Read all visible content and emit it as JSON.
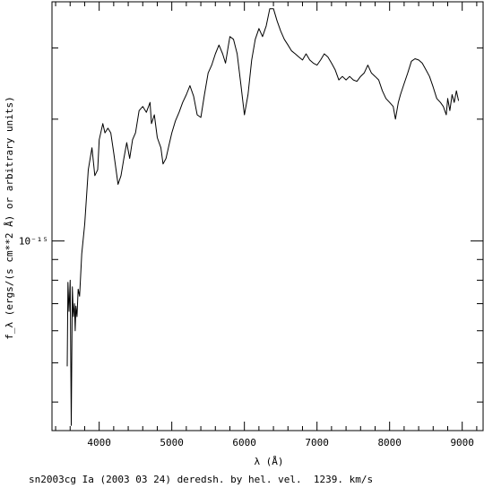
{
  "chart_data": {
    "type": "line",
    "title": "",
    "xlabel": "λ (Å)",
    "ylabel": "f_λ (ergs/(s cm**2 Å) or arbitrary units)",
    "y_scale": "log",
    "xlim": [
      3350,
      9300
    ],
    "ylim": [
      3.4e-16,
      3.9e-15
    ],
    "x_ticks": [
      4000,
      5000,
      6000,
      7000,
      8000,
      9000
    ],
    "x_tick_labels": [
      "4000",
      "5000",
      "6000",
      "7000",
      "8000",
      "9000"
    ],
    "y_major_tick": 1e-15,
    "y_major_tick_label": "10⁻¹⁵",
    "grid": false,
    "caption": "sn2003cg Ia (2003 03 24) deredsh. by hel. vel.  1239. km/s",
    "series": [
      {
        "points": [
          [
            3560,
            4.9e-16
          ],
          [
            3570,
            7.9e-16
          ],
          [
            3585,
            6.7e-16
          ],
          [
            3600,
            8e-16
          ],
          [
            3615,
            3.5e-16
          ],
          [
            3630,
            7.7e-16
          ],
          [
            3645,
            6.5e-16
          ],
          [
            3660,
            7e-16
          ],
          [
            3670,
            6e-16
          ],
          [
            3680,
            6.9e-16
          ],
          [
            3695,
            6.5e-16
          ],
          [
            3710,
            7.6e-16
          ],
          [
            3730,
            7.3e-16
          ],
          [
            3760,
            9.3e-16
          ],
          [
            3800,
            1.1e-15
          ],
          [
            3850,
            1.5e-15
          ],
          [
            3900,
            1.7e-15
          ],
          [
            3940,
            1.45e-15
          ],
          [
            3980,
            1.5e-15
          ],
          [
            4000,
            1.78e-15
          ],
          [
            4050,
            1.95e-15
          ],
          [
            4080,
            1.85e-15
          ],
          [
            4120,
            1.9e-15
          ],
          [
            4160,
            1.85e-15
          ],
          [
            4200,
            1.65e-15
          ],
          [
            4260,
            1.38e-15
          ],
          [
            4300,
            1.45e-15
          ],
          [
            4340,
            1.6e-15
          ],
          [
            4380,
            1.75e-15
          ],
          [
            4420,
            1.6e-15
          ],
          [
            4460,
            1.78e-15
          ],
          [
            4500,
            1.85e-15
          ],
          [
            4550,
            2.1e-15
          ],
          [
            4600,
            2.15e-15
          ],
          [
            4650,
            2.08e-15
          ],
          [
            4700,
            2.2e-15
          ],
          [
            4720,
            1.95e-15
          ],
          [
            4760,
            2.05e-15
          ],
          [
            4800,
            1.8e-15
          ],
          [
            4850,
            1.7e-15
          ],
          [
            4880,
            1.55e-15
          ],
          [
            4920,
            1.6e-15
          ],
          [
            4960,
            1.72e-15
          ],
          [
            5000,
            1.85e-15
          ],
          [
            5050,
            1.98e-15
          ],
          [
            5100,
            2.08e-15
          ],
          [
            5150,
            2.2e-15
          ],
          [
            5200,
            2.3e-15
          ],
          [
            5250,
            2.42e-15
          ],
          [
            5300,
            2.28e-15
          ],
          [
            5350,
            2.05e-15
          ],
          [
            5400,
            2.02e-15
          ],
          [
            5450,
            2.3e-15
          ],
          [
            5500,
            2.6e-15
          ],
          [
            5550,
            2.72e-15
          ],
          [
            5600,
            2.9e-15
          ],
          [
            5650,
            3.05e-15
          ],
          [
            5700,
            2.9e-15
          ],
          [
            5740,
            2.75e-15
          ],
          [
            5780,
            3.05e-15
          ],
          [
            5800,
            3.2e-15
          ],
          [
            5850,
            3.15e-15
          ],
          [
            5900,
            2.9e-15
          ],
          [
            5950,
            2.45e-15
          ],
          [
            6000,
            2.05e-15
          ],
          [
            6050,
            2.3e-15
          ],
          [
            6100,
            2.8e-15
          ],
          [
            6150,
            3.15e-15
          ],
          [
            6200,
            3.35e-15
          ],
          [
            6250,
            3.2e-15
          ],
          [
            6300,
            3.4e-15
          ],
          [
            6350,
            3.75e-15
          ],
          [
            6400,
            3.75e-15
          ],
          [
            6450,
            3.5e-15
          ],
          [
            6500,
            3.3e-15
          ],
          [
            6550,
            3.15e-15
          ],
          [
            6600,
            3.05e-15
          ],
          [
            6650,
            2.95e-15
          ],
          [
            6700,
            2.9e-15
          ],
          [
            6750,
            2.85e-15
          ],
          [
            6800,
            2.8e-15
          ],
          [
            6850,
            2.9e-15
          ],
          [
            6900,
            2.8e-15
          ],
          [
            6950,
            2.75e-15
          ],
          [
            7000,
            2.72e-15
          ],
          [
            7050,
            2.8e-15
          ],
          [
            7100,
            2.9e-15
          ],
          [
            7150,
            2.85e-15
          ],
          [
            7200,
            2.75e-15
          ],
          [
            7250,
            2.65e-15
          ],
          [
            7300,
            2.5e-15
          ],
          [
            7350,
            2.55e-15
          ],
          [
            7400,
            2.5e-15
          ],
          [
            7450,
            2.55e-15
          ],
          [
            7500,
            2.5e-15
          ],
          [
            7550,
            2.48e-15
          ],
          [
            7600,
            2.55e-15
          ],
          [
            7650,
            2.6e-15
          ],
          [
            7700,
            2.72e-15
          ],
          [
            7750,
            2.6e-15
          ],
          [
            7800,
            2.55e-15
          ],
          [
            7850,
            2.5e-15
          ],
          [
            7900,
            2.35e-15
          ],
          [
            7950,
            2.25e-15
          ],
          [
            8000,
            2.2e-15
          ],
          [
            8050,
            2.15e-15
          ],
          [
            8080,
            2e-15
          ],
          [
            8120,
            2.2e-15
          ],
          [
            8150,
            2.3e-15
          ],
          [
            8200,
            2.45e-15
          ],
          [
            8250,
            2.6e-15
          ],
          [
            8300,
            2.78e-15
          ],
          [
            8350,
            2.82e-15
          ],
          [
            8400,
            2.8e-15
          ],
          [
            8450,
            2.75e-15
          ],
          [
            8500,
            2.65e-15
          ],
          [
            8550,
            2.55e-15
          ],
          [
            8600,
            2.4e-15
          ],
          [
            8650,
            2.25e-15
          ],
          [
            8700,
            2.2e-15
          ],
          [
            8740,
            2.15e-15
          ],
          [
            8780,
            2.05e-15
          ],
          [
            8800,
            2.25e-15
          ],
          [
            8830,
            2.1e-15
          ],
          [
            8860,
            2.3e-15
          ],
          [
            8890,
            2.2e-15
          ],
          [
            8920,
            2.35e-15
          ],
          [
            8950,
            2.22e-15
          ]
        ]
      }
    ]
  }
}
